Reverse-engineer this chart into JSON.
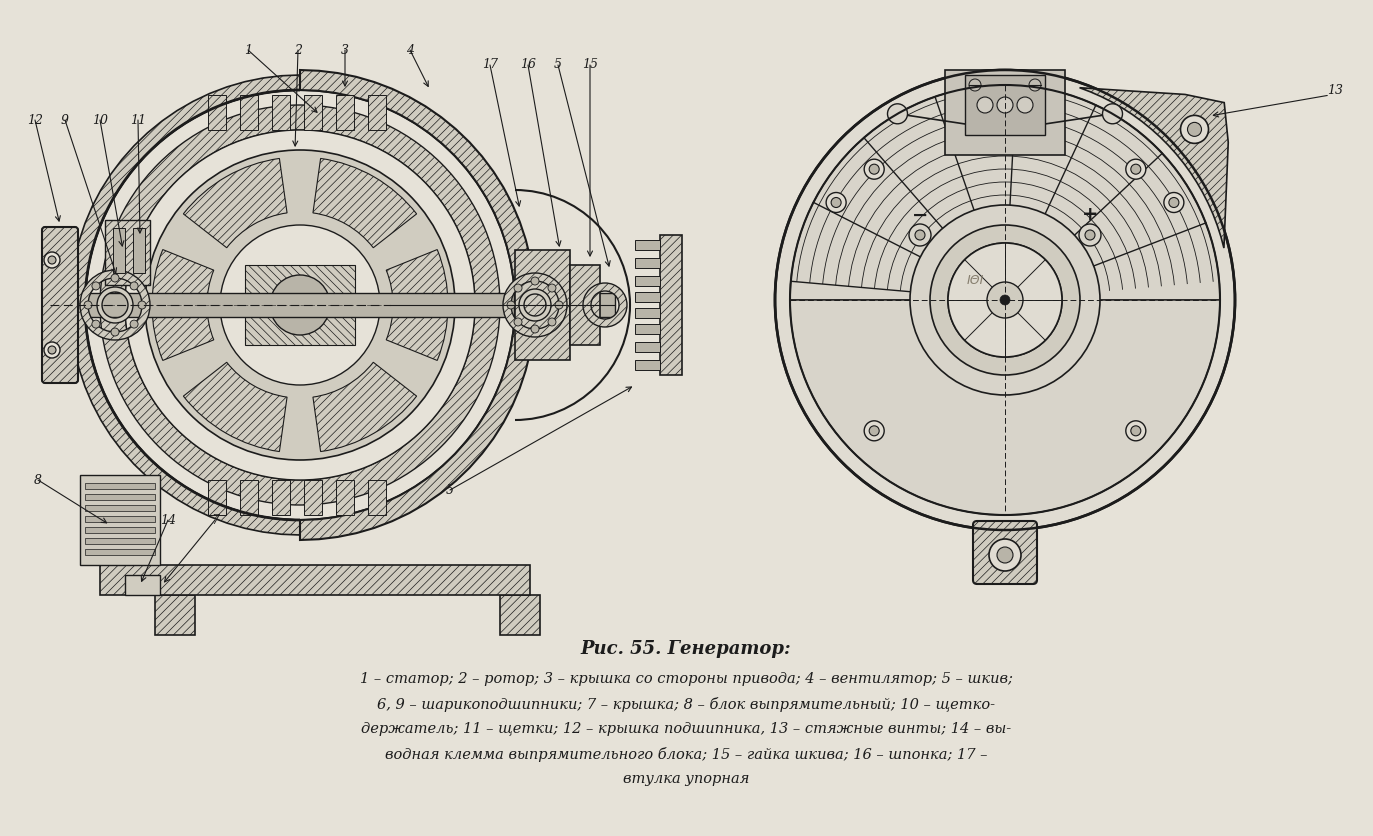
{
  "background_color": "#e6e2d8",
  "title": "Рис. 55. Генератор:",
  "caption_lines": [
    "1 – статор; 2 – ротор; 3 – крышка со стороны привода; 4 – вентилятор; 5 – шкив;",
    "6, 9 – шарикоподшипники; 7 – крышка; 8 – блок выпрямительный; 10 – щетко-",
    "держатель; 11 – щетки; 12 – крышка подшипника, 13 – стяжные винты; 14 – вы-",
    "водная клемма выпрямительного блока; 15 – гайка шкива; 16 – шпонка; 17 –",
    "втулка упорная"
  ],
  "title_fontsize": 13,
  "caption_fontsize": 10.5,
  "fig_width": 13.73,
  "fig_height": 8.36,
  "lc": "#1c1c1c",
  "fc_hatch": "#d0ccc0",
  "fc_white": "#e6e2d8",
  "fc_mid": "#b8b4a8",
  "fc_dark": "#7a7870"
}
